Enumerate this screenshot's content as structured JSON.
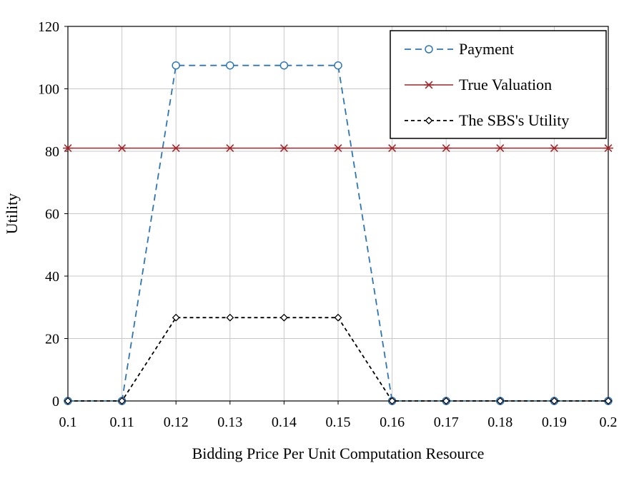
{
  "chart_data": {
    "type": "line",
    "title": "",
    "xlabel": "Bidding Price Per Unit Computation Resource",
    "ylabel": "Utility",
    "x": [
      0.1,
      0.11,
      0.12,
      0.13,
      0.14,
      0.15,
      0.16,
      0.17,
      0.18,
      0.19,
      0.2
    ],
    "x_tick_labels": [
      "0.1",
      "0.11",
      "0.12",
      "0.13",
      "0.14",
      "0.15",
      "0.16",
      "0.17",
      "0.18",
      "0.19",
      "0.2"
    ],
    "y_tick_labels": [
      "0",
      "20",
      "40",
      "60",
      "80",
      "100",
      "120"
    ],
    "xlim": [
      0.1,
      0.2
    ],
    "ylim": [
      0,
      120
    ],
    "grid": true,
    "legend_position": "top-right",
    "series": [
      {
        "name": "Payment",
        "values": [
          0,
          0,
          107.5,
          107.5,
          107.5,
          107.5,
          0,
          0,
          0,
          0,
          0
        ],
        "color": "#2e75b6",
        "line_style": "dashed",
        "marker": "circle"
      },
      {
        "name": "True Valuation",
        "values": [
          81,
          81,
          81,
          81,
          81,
          81,
          81,
          81,
          81,
          81,
          81
        ],
        "color": "#a5262a",
        "line_style": "solid",
        "marker": "star"
      },
      {
        "name": "The SBS's Utility",
        "values": [
          0,
          0,
          26.7,
          26.7,
          26.7,
          26.7,
          0,
          0,
          0,
          0,
          0
        ],
        "color": "#000000",
        "line_style": "dashed",
        "marker": "diamond"
      }
    ]
  }
}
